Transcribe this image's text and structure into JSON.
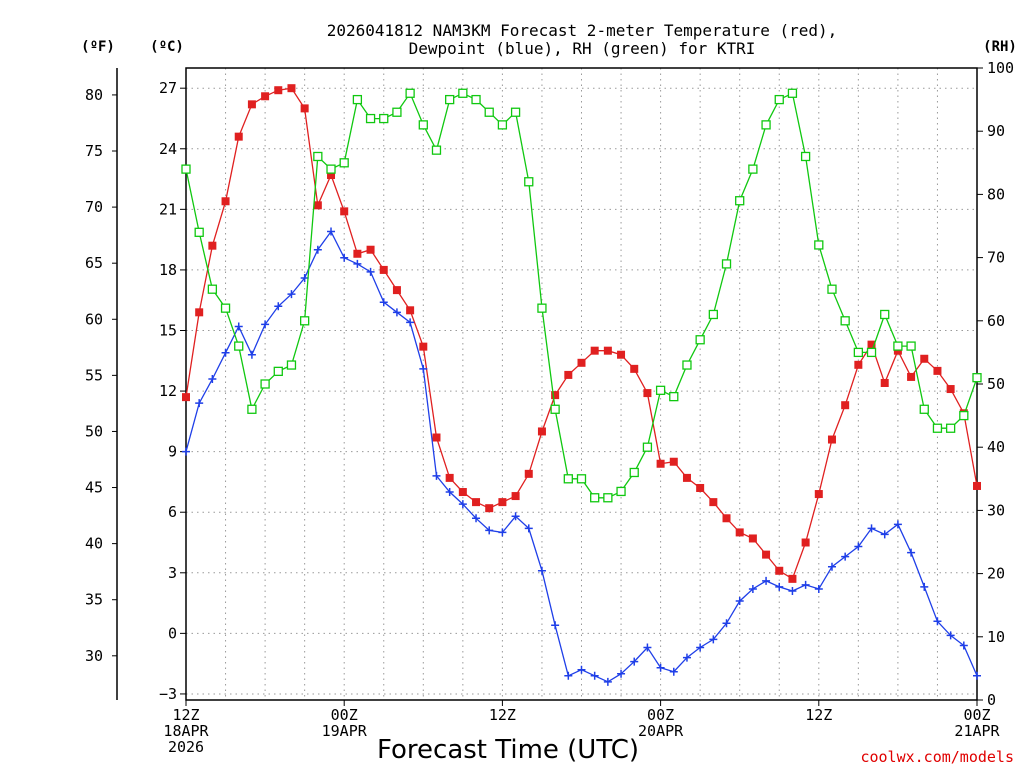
{
  "chart_data": {
    "type": "line",
    "title_line1": "2026041812 NAM3KM Forecast 2-meter Temperature (red),",
    "title_line2": "Dewpoint (blue), RH (green) for KTRI",
    "xlabel": "Forecast Time (UTC)",
    "credit": "coolwx.com/models",
    "units": {
      "fahrenheit": "(ºF)",
      "celsius": "(ºC)",
      "rh": "(RH)"
    },
    "x_range_hours": [
      0,
      60
    ],
    "c_range": [
      -3.3,
      28
    ],
    "rh_range": [
      0,
      100
    ],
    "c_ticks": [
      "-3",
      "0",
      "3",
      "6",
      "9",
      "12",
      "15",
      "18",
      "21",
      "24",
      "27"
    ],
    "f_ticks": [
      "30",
      "35",
      "40",
      "45",
      "50",
      "55",
      "60",
      "65",
      "70",
      "75",
      "80"
    ],
    "rh_ticks": [
      "0",
      "10",
      "20",
      "30",
      "40",
      "50",
      "60",
      "70",
      "80",
      "90",
      "100"
    ],
    "x_ticks": [
      {
        "hour": 0,
        "lines": [
          "12Z",
          "18APR",
          "2026"
        ]
      },
      {
        "hour": 12,
        "lines": [
          "00Z",
          "19APR"
        ]
      },
      {
        "hour": 24,
        "lines": [
          "12Z"
        ]
      },
      {
        "hour": 36,
        "lines": [
          "00Z",
          "20APR"
        ]
      },
      {
        "hour": 48,
        "lines": [
          "12Z"
        ]
      },
      {
        "hour": 60,
        "lines": [
          "00Z",
          "21APR"
        ]
      }
    ],
    "colors": {
      "temperature": "#e02020",
      "dewpoint": "#1f3fe8",
      "rh": "#10c810"
    },
    "series": [
      {
        "name": "Temperature (°C)",
        "marker": "filled-square",
        "x": [
          0,
          1,
          2,
          3,
          4,
          5,
          6,
          7,
          8,
          9,
          10,
          11,
          12,
          13,
          14,
          15,
          16,
          17,
          18,
          19,
          20,
          21,
          22,
          23,
          24,
          25,
          26,
          27,
          28,
          29,
          30,
          31,
          32,
          33,
          34,
          35,
          36,
          37,
          38,
          39,
          40,
          41,
          42,
          43,
          44,
          45,
          46,
          47,
          48,
          49,
          50,
          51,
          52,
          53,
          54,
          55,
          56,
          57,
          58,
          59,
          60
        ],
        "values": [
          11.7,
          15.9,
          19.2,
          21.4,
          24.6,
          26.2,
          26.6,
          26.9,
          27.0,
          26.0,
          21.2,
          22.7,
          20.9,
          18.8,
          19.0,
          18.0,
          17.0,
          16.0,
          14.2,
          9.7,
          7.7,
          7.0,
          6.5,
          6.2,
          6.5,
          6.8,
          7.9,
          10.0,
          11.8,
          12.8,
          13.4,
          14.0,
          14.0,
          13.8,
          13.1,
          11.9,
          8.4,
          8.5,
          7.7,
          7.2,
          6.5,
          5.7,
          5.0,
          4.7,
          3.9,
          3.1,
          2.7,
          4.5,
          6.9,
          9.6,
          11.3,
          13.3,
          14.3,
          12.4,
          14.0,
          12.7,
          13.6,
          13.0,
          12.1,
          10.9,
          7.3
        ]
      },
      {
        "name": "Dewpoint (°C)",
        "marker": "plus",
        "x": [
          0,
          1,
          2,
          3,
          4,
          5,
          6,
          7,
          8,
          9,
          10,
          11,
          12,
          13,
          14,
          15,
          16,
          17,
          18,
          19,
          20,
          21,
          22,
          23,
          24,
          25,
          26,
          27,
          28,
          29,
          30,
          31,
          32,
          33,
          34,
          35,
          36,
          37,
          38,
          39,
          40,
          41,
          42,
          43,
          44,
          45,
          46,
          47,
          48,
          49,
          50,
          51,
          52,
          53,
          54,
          55,
          56,
          57,
          58,
          59,
          60
        ],
        "values": [
          9.0,
          11.4,
          12.6,
          13.9,
          15.2,
          13.8,
          15.3,
          16.2,
          16.8,
          17.6,
          19.0,
          19.9,
          18.6,
          18.3,
          17.9,
          16.4,
          15.9,
          15.4,
          13.1,
          7.8,
          7.0,
          6.4,
          5.7,
          5.1,
          5.0,
          5.8,
          5.2,
          3.1,
          0.4,
          -2.1,
          -1.8,
          -2.1,
          -2.4,
          -2.0,
          -1.4,
          -0.7,
          -1.7,
          -1.9,
          -1.2,
          -0.7,
          -0.3,
          0.5,
          1.6,
          2.2,
          2.6,
          2.3,
          2.1,
          2.4,
          2.2,
          3.3,
          3.8,
          4.3,
          5.2,
          4.9,
          5.4,
          4.0,
          2.3,
          0.6,
          -0.1,
          -0.6,
          -2.1
        ]
      },
      {
        "name": "Relative Humidity (%)",
        "marker": "open-square",
        "x": [
          0,
          1,
          2,
          3,
          4,
          5,
          6,
          7,
          8,
          9,
          10,
          11,
          12,
          13,
          14,
          15,
          16,
          17,
          18,
          19,
          20,
          21,
          22,
          23,
          24,
          25,
          26,
          27,
          28,
          29,
          30,
          31,
          32,
          33,
          34,
          35,
          36,
          37,
          38,
          39,
          40,
          41,
          42,
          43,
          44,
          45,
          46,
          47,
          48,
          49,
          50,
          51,
          52,
          53,
          54,
          55,
          56,
          57,
          58,
          59,
          60
        ],
        "values": [
          84,
          74,
          65,
          62,
          56,
          46,
          50,
          52,
          53,
          60,
          86,
          84,
          85,
          95,
          92,
          92,
          93,
          96,
          91,
          87,
          95,
          96,
          95,
          93,
          91,
          93,
          82,
          62,
          46,
          35,
          35,
          32,
          32,
          33,
          36,
          40,
          49,
          48,
          53,
          57,
          61,
          69,
          79,
          84,
          91,
          95,
          96,
          86,
          72,
          65,
          60,
          55,
          55,
          61,
          56,
          56,
          46,
          43,
          43,
          45,
          51
        ]
      }
    ]
  }
}
